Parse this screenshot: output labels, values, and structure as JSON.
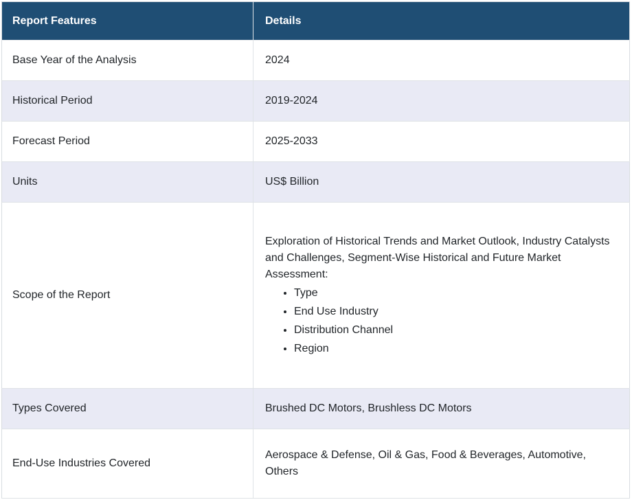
{
  "colors": {
    "header_bg": "#1f4e74",
    "header_text": "#ffffff",
    "row_alt_bg": "#e9eaf5",
    "row_bg": "#ffffff",
    "border": "#dee2e6",
    "body_text": "#212529"
  },
  "table": {
    "columns": [
      "Report Features",
      "Details"
    ],
    "rows": [
      {
        "feature": "Base Year of the Analysis",
        "detail": "2024"
      },
      {
        "feature": "Historical Period",
        "detail": "2019-2024"
      },
      {
        "feature": "Forecast Period",
        "detail": "2025-2033"
      },
      {
        "feature": "Units",
        "detail": "US$ Billion"
      },
      {
        "feature": "Scope of the Report",
        "detail_intro": "Exploration of Historical Trends and Market Outlook, Industry Catalysts and Challenges, Segment-Wise Historical and Future Market Assessment:",
        "detail_bullets": [
          "Type",
          "End Use Industry",
          "Distribution Channel",
          "Region"
        ]
      },
      {
        "feature": "Types Covered",
        "detail": "Brushed DC Motors, Brushless DC Motors"
      },
      {
        "feature": "End-Use Industries Covered",
        "detail": "Aerospace & Defense, Oil & Gas, Food & Beverages, Automotive, Others"
      }
    ]
  }
}
